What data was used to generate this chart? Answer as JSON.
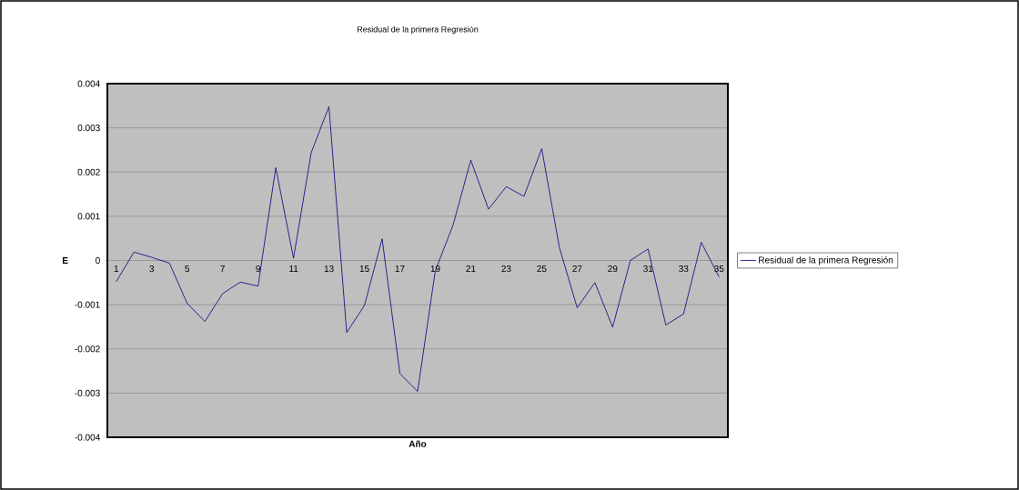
{
  "chart_data": {
    "type": "line",
    "title": "Residual de la primera Regresión",
    "xlabel": "Año",
    "ylabel": "E",
    "categories": [
      "1",
      null,
      "3",
      null,
      "5",
      null,
      "7",
      null,
      "9",
      null,
      "11",
      null,
      "13",
      null,
      "15",
      null,
      "17",
      null,
      "19",
      null,
      "21",
      null,
      "23",
      null,
      "25",
      null,
      "27",
      null,
      "29",
      null,
      "31",
      null,
      "33",
      null,
      "35"
    ],
    "series": [
      {
        "name": "Residual de la primera Regresión",
        "color": "#000080",
        "values": [
          -0.00048,
          0.00019,
          7e-05,
          -6e-05,
          -0.00097,
          -0.00138,
          -0.00075,
          -0.00049,
          -0.00058,
          0.0021,
          5e-05,
          0.00244,
          0.00348,
          -0.00163,
          -0.00102,
          0.00049,
          -0.00256,
          -0.00296,
          -0.00023,
          0.0008,
          0.00227,
          0.00116,
          0.00167,
          0.00145,
          0.00253,
          0.00029,
          -0.00107,
          -0.0005,
          -0.00151,
          0,
          0.00026,
          -0.00146,
          -0.00121,
          0.00041,
          -0.00037
        ]
      }
    ],
    "ylim": [
      -0.004,
      0.004
    ],
    "yticks": [
      -0.004,
      -0.003,
      -0.002,
      -0.001,
      0,
      0.001,
      0.002,
      0.003,
      0.004
    ],
    "grid": "y",
    "legend": "right",
    "marker": "none",
    "line_style": "solid"
  }
}
